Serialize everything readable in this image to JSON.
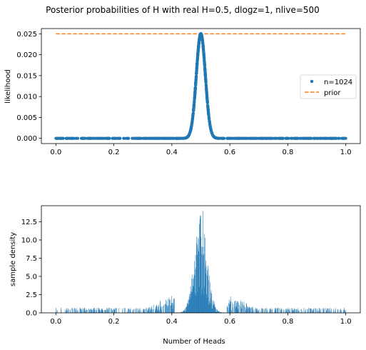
{
  "figure": {
    "suptitle": "Posterior probabilities of H with real H=0.5, dlogz=1, nlive=500"
  },
  "chart_data": [
    {
      "type": "scatter",
      "title": "",
      "xlabel": "",
      "ylabel": "likelihood",
      "xlim": [
        -0.05,
        1.05
      ],
      "ylim": [
        -0.00125,
        0.02625
      ],
      "xticks": [
        0.0,
        0.2,
        0.4,
        0.6,
        0.8,
        1.0
      ],
      "xtick_labels": [
        "0.0",
        "0.2",
        "0.4",
        "0.6",
        "0.8",
        "1.0"
      ],
      "yticks": [
        0.0,
        0.005,
        0.01,
        0.015,
        0.02,
        0.025
      ],
      "ytick_labels": [
        "0.000",
        "0.005",
        "0.010",
        "0.015",
        "0.020",
        "0.025"
      ],
      "grid": false,
      "legend": {
        "placement": "center-right",
        "entries": [
          "n=1024",
          "prior"
        ]
      },
      "series": [
        {
          "name": "n=1024",
          "kind": "points",
          "color": "#1f77b4",
          "marker": "dot",
          "n_points": 1024,
          "x_range": [
            0.0,
            1.0
          ],
          "peak": {
            "x": 0.5,
            "y": 0.025
          },
          "sigma": 0.0156
        },
        {
          "name": "prior",
          "kind": "dashed-line",
          "color": "#ff7f0e",
          "x": [
            0.0,
            1.0
          ],
          "y": [
            0.025,
            0.025
          ]
        }
      ]
    },
    {
      "type": "bar",
      "title": "",
      "xlabel": "Number of Heads",
      "ylabel": "sample density",
      "xlim": [
        -0.05,
        1.05
      ],
      "ylim": [
        0,
        14.7
      ],
      "xticks": [
        0.0,
        0.2,
        0.4,
        0.6,
        0.8,
        1.0
      ],
      "xtick_labels": [
        "0.0",
        "0.2",
        "0.4",
        "0.6",
        "0.8",
        "1.0"
      ],
      "yticks": [
        0.0,
        2.5,
        5.0,
        7.5,
        10.0,
        12.5
      ],
      "ytick_labels": [
        "0.0",
        "2.5",
        "5.0",
        "7.5",
        "10.0",
        "12.5"
      ],
      "grid": false,
      "bins": 1000,
      "bin_range": [
        0.0,
        1.0
      ],
      "color": "#1f77b4",
      "max_density": 14.0,
      "peak_location": 0.5,
      "background_density": 0.4
    }
  ]
}
